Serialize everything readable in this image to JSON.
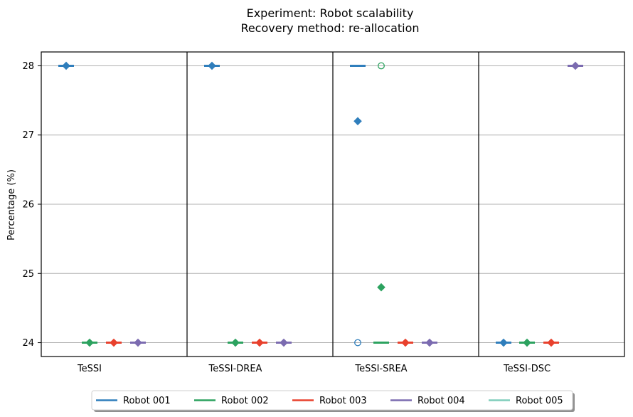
{
  "chart_data": {
    "type": "box",
    "title": "Experiment: Robot scalability",
    "subtitle": "Recovery method: re-allocation",
    "ylabel": "Percentage (%)",
    "xlabel": "",
    "ylim": [
      23.8,
      28.2
    ],
    "yticks": [
      24,
      25,
      26,
      27,
      28
    ],
    "grid": "y",
    "categories": [
      "TeSSI",
      "TeSSI-DREA",
      "TeSSI-SREA",
      "TeSSI-DSC"
    ],
    "series": [
      {
        "name": "Robot 001",
        "color": "#2f7ebc",
        "points": [
          {
            "group": 0,
            "slot": 0,
            "median": 28,
            "mean": 28,
            "outliers": []
          },
          {
            "group": 1,
            "slot": 0,
            "median": 28,
            "mean": 28,
            "outliers": []
          },
          {
            "group": 2,
            "slot": 0,
            "median": 28,
            "mean": 27.2,
            "outliers": [
              24
            ]
          },
          {
            "group": 3,
            "slot": 0,
            "median": 24,
            "mean": 24,
            "outliers": []
          }
        ]
      },
      {
        "name": "Robot 002",
        "color": "#2ca25f",
        "points": [
          {
            "group": 0,
            "slot": 1,
            "median": 24,
            "mean": 24,
            "outliers": []
          },
          {
            "group": 1,
            "slot": 1,
            "median": 24,
            "mean": 24,
            "outliers": []
          },
          {
            "group": 2,
            "slot": 1,
            "median": 24,
            "mean": 24.8,
            "outliers": [
              28
            ]
          },
          {
            "group": 3,
            "slot": 1,
            "median": 24,
            "mean": 24,
            "outliers": []
          }
        ]
      },
      {
        "name": "Robot 003",
        "color": "#e8412d",
        "points": [
          {
            "group": 0,
            "slot": 2,
            "median": 24,
            "mean": 24,
            "outliers": []
          },
          {
            "group": 1,
            "slot": 2,
            "median": 24,
            "mean": 24,
            "outliers": []
          },
          {
            "group": 2,
            "slot": 2,
            "median": 24,
            "mean": 24,
            "outliers": []
          },
          {
            "group": 3,
            "slot": 2,
            "median": 24,
            "mean": 24,
            "outliers": []
          }
        ]
      },
      {
        "name": "Robot 004",
        "color": "#7b6bb0",
        "points": [
          {
            "group": 0,
            "slot": 3,
            "median": 24,
            "mean": 24,
            "outliers": []
          },
          {
            "group": 1,
            "slot": 3,
            "median": 24,
            "mean": 24,
            "outliers": []
          },
          {
            "group": 2,
            "slot": 3,
            "median": 24,
            "mean": 24,
            "outliers": []
          },
          {
            "group": 3,
            "slot": 3,
            "median": 28,
            "mean": 28,
            "outliers": []
          }
        ]
      },
      {
        "name": "Robot 005",
        "color": "#7fcdbb",
        "points": []
      }
    ],
    "legend_position": "bottom-center"
  }
}
